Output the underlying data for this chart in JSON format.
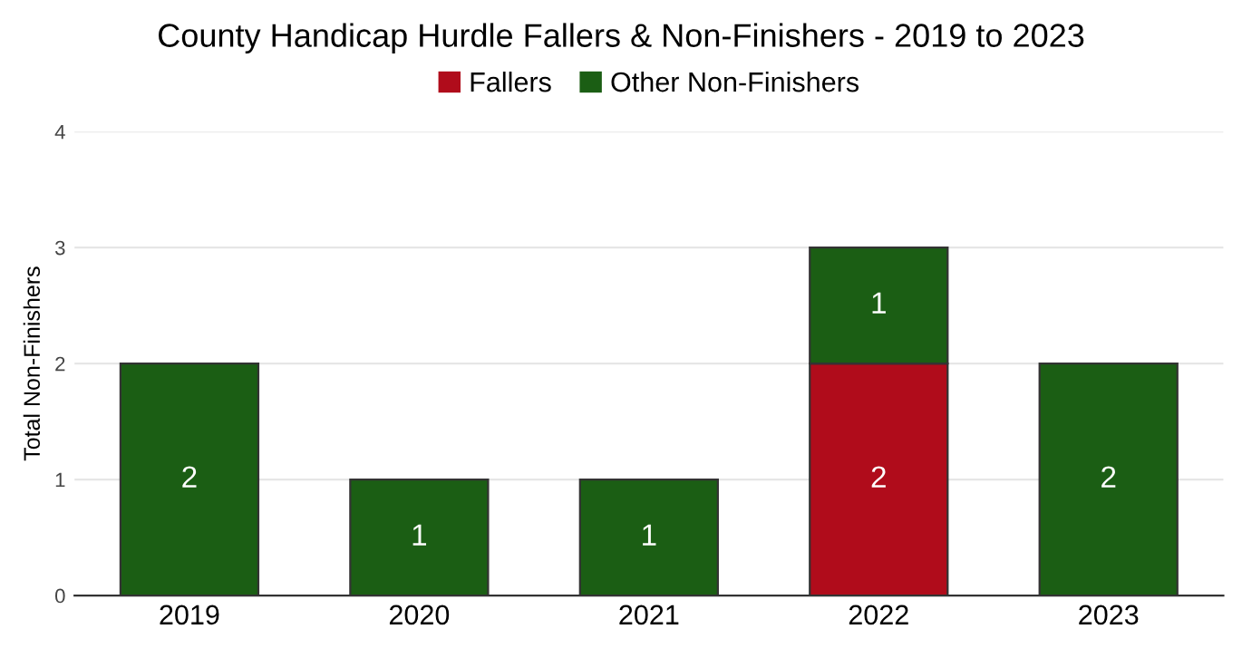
{
  "chart_data": {
    "type": "bar",
    "title": "County Handicap Hurdle Fallers & Non-Finishers - 2019 to 2023",
    "ylabel": "Total Non-Finishers",
    "categories": [
      "2019",
      "2020",
      "2021",
      "2022",
      "2023"
    ],
    "series": [
      {
        "name": "Fallers",
        "color": "#b00c1b",
        "values": [
          0,
          0,
          0,
          2,
          0
        ],
        "value_labels": [
          null,
          null,
          null,
          "2",
          null
        ]
      },
      {
        "name": "Other Non-Finishers",
        "color": "#1b5e14",
        "values": [
          2,
          1,
          1,
          1,
          2
        ],
        "value_labels": [
          "2",
          "1",
          "1",
          "1",
          "2"
        ]
      }
    ],
    "stacked": true,
    "ylim": [
      0,
      4
    ],
    "yticks": [
      0,
      1,
      2,
      3,
      4
    ],
    "grid": "y",
    "legend": "top"
  }
}
